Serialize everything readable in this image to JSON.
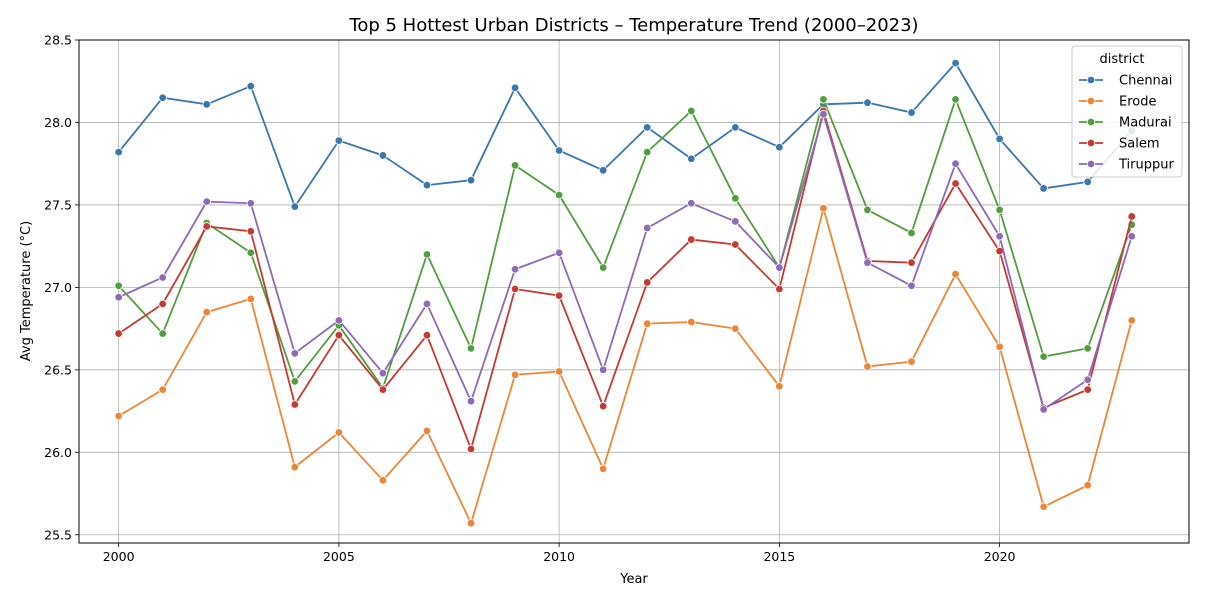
{
  "chart_data": {
    "type": "line",
    "title": "Top 5 Hottest Urban Districts – Temperature Trend (2000–2023)",
    "xlabel": "Year",
    "ylabel": "Avg Temperature (°C)",
    "xlim": [
      1999.1,
      2024.3
    ],
    "ylim": [
      25.45,
      28.5
    ],
    "xticks": [
      2000,
      2005,
      2010,
      2015,
      2020
    ],
    "yticks": [
      25.5,
      26.0,
      26.5,
      27.0,
      27.5,
      28.0,
      28.5
    ],
    "grid": true,
    "legend_title": "district",
    "legend_position": "top-right",
    "x": [
      2000,
      2001,
      2002,
      2003,
      2004,
      2005,
      2006,
      2007,
      2008,
      2009,
      2010,
      2011,
      2012,
      2013,
      2014,
      2015,
      2016,
      2017,
      2018,
      2019,
      2020,
      2021,
      2022,
      2023
    ],
    "series": [
      {
        "name": "Chennai",
        "color": "#3a76af",
        "values": [
          27.82,
          28.15,
          28.11,
          28.22,
          27.49,
          27.89,
          27.8,
          27.62,
          27.65,
          28.21,
          27.83,
          27.71,
          27.97,
          27.78,
          27.97,
          27.85,
          28.11,
          28.12,
          28.06,
          28.36,
          27.9,
          27.6,
          27.64,
          27.95
        ]
      },
      {
        "name": "Erode",
        "color": "#ef8636",
        "values": [
          26.22,
          26.38,
          26.85,
          26.93,
          25.91,
          26.12,
          25.83,
          26.13,
          25.57,
          26.47,
          26.49,
          25.9,
          26.78,
          26.79,
          26.75,
          26.4,
          27.48,
          26.52,
          26.55,
          27.08,
          26.64,
          25.67,
          25.8,
          26.8
        ]
      },
      {
        "name": "Madurai",
        "color": "#519e3e",
        "values": [
          27.01,
          26.72,
          27.39,
          27.21,
          26.43,
          26.77,
          26.39,
          27.2,
          26.63,
          27.74,
          27.56,
          27.12,
          27.82,
          28.07,
          27.54,
          27.12,
          28.14,
          27.47,
          27.33,
          28.14,
          27.47,
          26.58,
          26.63,
          27.38
        ]
      },
      {
        "name": "Salem",
        "color": "#c53a32",
        "values": [
          26.72,
          26.9,
          27.37,
          27.34,
          26.29,
          26.71,
          26.38,
          26.71,
          26.02,
          26.99,
          26.95,
          26.28,
          27.03,
          27.29,
          27.26,
          26.99,
          28.07,
          27.16,
          27.15,
          27.63,
          27.22,
          26.27,
          26.38,
          27.43
        ]
      },
      {
        "name": "Tiruppur",
        "color": "#8d69b8",
        "values": [
          26.94,
          27.06,
          27.52,
          27.51,
          26.6,
          26.8,
          26.48,
          26.9,
          26.31,
          27.11,
          27.21,
          26.5,
          27.36,
          27.51,
          27.4,
          27.12,
          28.05,
          27.15,
          27.01,
          27.75,
          27.31,
          26.26,
          26.44,
          27.31
        ]
      }
    ]
  }
}
